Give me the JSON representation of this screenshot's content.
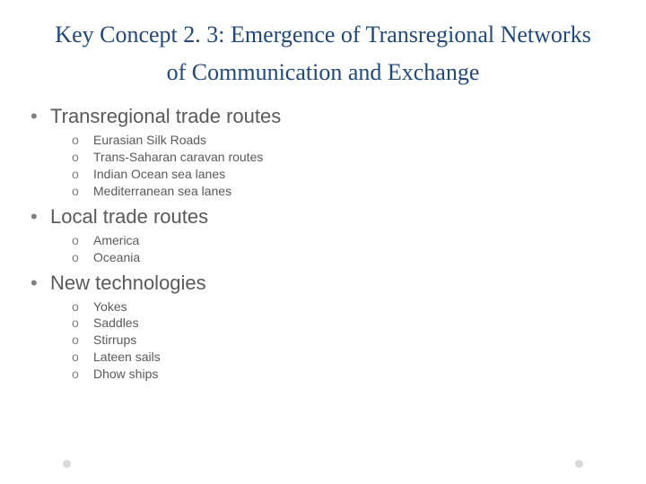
{
  "title": "Key Concept 2. 3: Emergence of Transregional Networks of Communication and Exchange",
  "colors": {
    "title": "#1f497d",
    "body_text": "#595959",
    "bullet": "#7f7f7f",
    "background": "#ffffff",
    "marker": "#d9d9d9"
  },
  "typography": {
    "title_font": "Palatino Linotype",
    "title_fontsize": 26,
    "body_font": "Arial",
    "l1_fontsize": 22,
    "l2_fontsize": 14
  },
  "sections": [
    {
      "label": "Transregional trade routes",
      "items": [
        "Eurasian Silk Roads",
        "Trans-Saharan caravan routes",
        "Indian Ocean sea lanes",
        "Mediterranean sea lanes"
      ]
    },
    {
      "label": "Local trade routes",
      "items": [
        "America",
        "Oceania"
      ]
    },
    {
      "label": "New technologies",
      "items": [
        "Yokes",
        "Saddles",
        "Stirrups",
        "Lateen sails",
        "Dhow ships"
      ]
    }
  ]
}
